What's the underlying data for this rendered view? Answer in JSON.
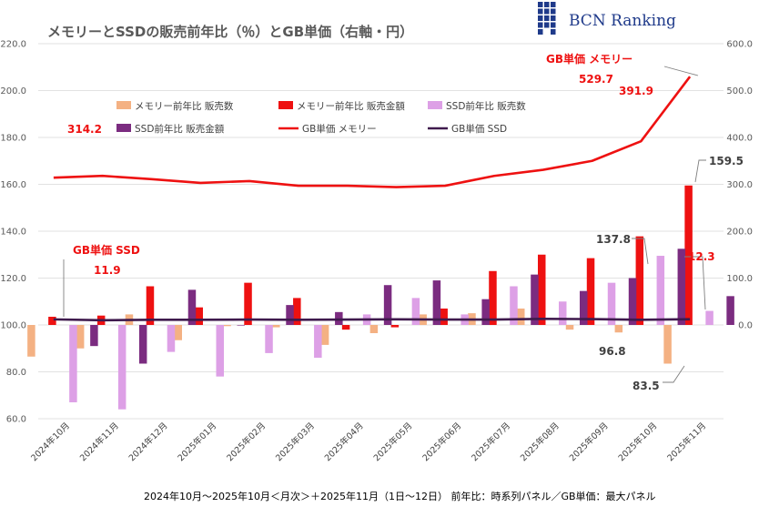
{
  "logo": {
    "text": "BCN Ranking",
    "color": "#1f3a8a"
  },
  "footer": "2024年10月～2025年10月＜月次＞＋2025年11月（1日～12日） 前年比：時系列パネル／GB単価：最大パネル",
  "chart_data": {
    "type": "bar",
    "title": "メモリーとSSDの販売前年比（％）とGB単価（右軸・円）",
    "categories": [
      "2024年10月",
      "2024年11月",
      "2024年12月",
      "2025年01月",
      "2025年02月",
      "2025年03月",
      "2025年04月",
      "2025年05月",
      "2025年06月",
      "2025年07月",
      "2025年08月",
      "2025年09月",
      "2025年10月",
      "2025年11月"
    ],
    "y_left": {
      "min": 60,
      "max": 220,
      "ticks": [
        "60.0",
        "80.0",
        "100.0",
        "120.0",
        "140.0",
        "160.0",
        "180.0",
        "200.0",
        "220.0"
      ]
    },
    "y_right": {
      "min": -200,
      "max": 600,
      "ticks": [
        "0.0",
        "100.0",
        "200.0",
        "300.0",
        "400.0",
        "500.0",
        "600.0"
      ]
    },
    "grid": true,
    "legend_position": "top-left",
    "series": [
      {
        "name": "メモリー前年比 販売数",
        "type": "bar",
        "axis": "left",
        "color": "#f4b183",
        "values": [
          86.5,
          90.0,
          104.5,
          93.5,
          99.5,
          99.0,
          91.5,
          96.5,
          104.5,
          105.0,
          107.0,
          98.0,
          96.8,
          83.5
        ]
      },
      {
        "name": "メモリー前年比 販売金額",
        "type": "bar",
        "axis": "left",
        "color": "#ee1111",
        "values": [
          103.5,
          104.0,
          116.5,
          107.5,
          118.0,
          111.5,
          98.0,
          99.0,
          107.0,
          123.0,
          130.0,
          128.5,
          137.8,
          159.5
        ]
      },
      {
        "name": "SSD前年比 販売数",
        "type": "bar",
        "axis": "left",
        "color": "#dda0e6",
        "values": [
          67.0,
          64.0,
          88.5,
          78.0,
          88.0,
          86.0,
          104.5,
          111.5,
          104.5,
          116.5,
          110.0,
          118.0,
          129.5,
          106.0
        ]
      },
      {
        "name": "SSD前年比 販売金額",
        "type": "bar",
        "axis": "left",
        "color": "#7b2c80",
        "values": [
          91.0,
          83.5,
          115.0,
          100.0,
          108.5,
          105.5,
          117.0,
          119.0,
          111.0,
          121.5,
          114.5,
          120.0,
          132.5,
          112.3
        ]
      },
      {
        "name": "GB単価 メモリー",
        "type": "line",
        "axis": "right",
        "color": "#ee1111",
        "values": [
          314.2,
          318.0,
          311.0,
          303.0,
          307.0,
          297.0,
          297.0,
          294.0,
          297.0,
          318.0,
          331.0,
          350.0,
          391.9,
          529.7
        ]
      },
      {
        "name": "GB単価 SSD",
        "type": "line",
        "axis": "right",
        "color": "#3f1a4d",
        "values": [
          11.9,
          10.0,
          11.0,
          11.0,
          11.5,
          11.0,
          11.5,
          12.0,
          11.5,
          11.5,
          13.0,
          12.5,
          11.0,
          12.3
        ]
      }
    ],
    "annotations": [
      {
        "text": "314.2",
        "style": "red"
      },
      {
        "text": "391.9",
        "style": "red"
      },
      {
        "text": "GB単価 メモリー",
        "style": "red"
      },
      {
        "text": "529.7",
        "style": "red"
      },
      {
        "text": "GB単価 SSD",
        "style": "red"
      },
      {
        "text": "11.9",
        "style": "red"
      },
      {
        "text": "12.3",
        "style": "red"
      },
      {
        "text": "137.8",
        "style": "dark"
      },
      {
        "text": "159.5",
        "style": "dark"
      },
      {
        "text": "96.8",
        "style": "dark"
      },
      {
        "text": "83.5",
        "style": "dark"
      }
    ]
  }
}
